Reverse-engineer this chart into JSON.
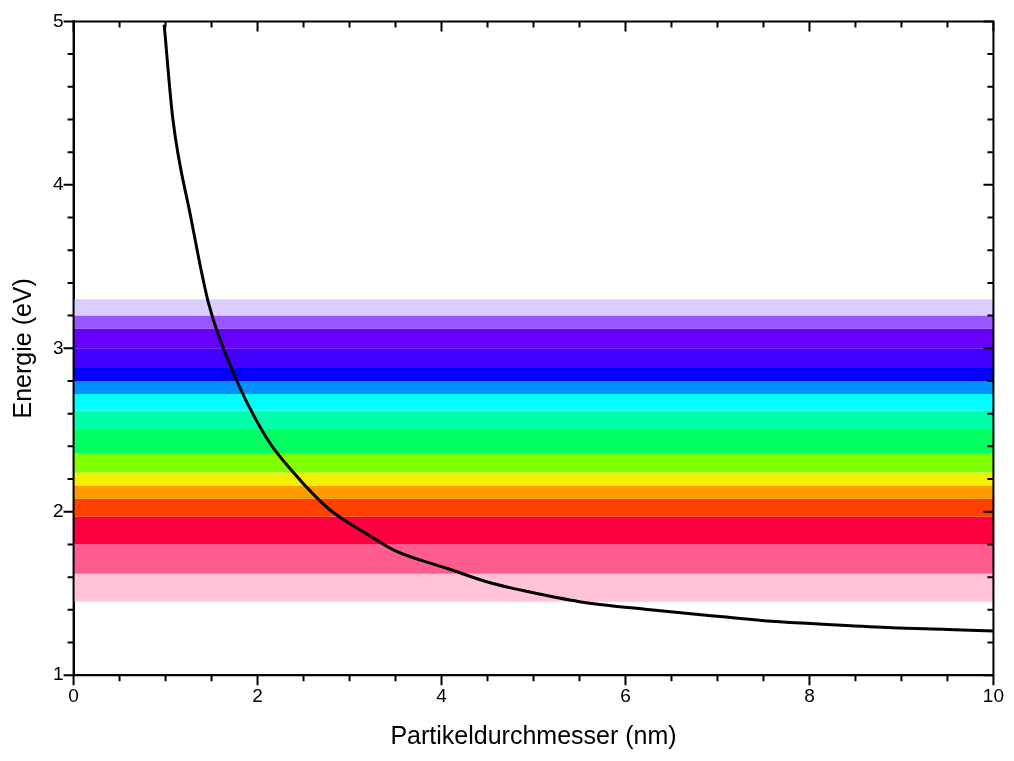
{
  "chart_data": {
    "type": "line",
    "xlabel": "Partikeldurchmesser (nm)",
    "ylabel": "Energie (eV)",
    "xlim": [
      0,
      10
    ],
    "ylim": [
      1,
      5
    ],
    "xticks": [
      0,
      {
        "value": 0.5,
        "label": null
      },
      {
        "value": 1,
        "label": null
      },
      {
        "value": 1.5,
        "label": null
      },
      2,
      {
        "value": 2.5,
        "label": null
      },
      {
        "value": 3,
        "label": null
      },
      {
        "value": 3.5,
        "label": null
      },
      4,
      {
        "value": 4.5,
        "label": null
      },
      {
        "value": 5,
        "label": null
      },
      {
        "value": 5.5,
        "label": null
      },
      6,
      {
        "value": 6.5,
        "label": null
      },
      {
        "value": 7,
        "label": null
      },
      {
        "value": 7.5,
        "label": null
      },
      8,
      {
        "value": 8.5,
        "label": null
      },
      {
        "value": 9,
        "label": null
      },
      {
        "value": 9.5,
        "label": null
      },
      10
    ],
    "yticks": [
      1,
      {
        "value": 1.2,
        "label": null
      },
      {
        "value": 1.4,
        "label": null
      },
      {
        "value": 1.6,
        "label": null
      },
      {
        "value": 1.8,
        "label": null
      },
      2,
      {
        "value": 2.2,
        "label": null
      },
      {
        "value": 2.4,
        "label": null
      },
      {
        "value": 2.6,
        "label": null
      },
      {
        "value": 2.8,
        "label": null
      },
      3,
      {
        "value": 3.2,
        "label": null
      },
      {
        "value": 3.4,
        "label": null
      },
      {
        "value": 3.6,
        "label": null
      },
      {
        "value": 3.8,
        "label": null
      },
      4,
      {
        "value": 4.2,
        "label": null
      },
      {
        "value": 4.4,
        "label": null
      },
      {
        "value": 4.6,
        "label": null
      },
      {
        "value": 4.8,
        "label": null
      },
      5
    ],
    "legend": false,
    "marker": "none",
    "line_style": "solid",
    "series": [
      {
        "color": "#000000",
        "x": [
          0.985,
          1.08,
          1.275,
          1.47,
          1.76,
          2.1,
          2.39,
          2.77,
          3.2,
          3.5,
          4.08,
          4.5,
          4.95,
          5.5,
          6.27,
          7,
          7.59,
          8.2,
          8.9,
          9.5,
          10
        ],
        "values": [
          4.98,
          4.4,
          3.8,
          3.27,
          2.82,
          2.45,
          2.24,
          2.02,
          1.86,
          1.76,
          1.65,
          1.57,
          1.51,
          1.45,
          1.4,
          1.36,
          1.33,
          1.31,
          1.29,
          1.28,
          1.27
        ]
      }
    ],
    "bands": [
      {
        "axis": "y",
        "from": 1.45,
        "to": 1.62,
        "color": "#ffc2d6"
      },
      {
        "axis": "y",
        "from": 1.62,
        "to": 1.8,
        "color": "#ff5c8f"
      },
      {
        "axis": "y",
        "from": 1.8,
        "to": 1.97,
        "color": "#ff0040"
      },
      {
        "axis": "y",
        "from": 1.97,
        "to": 2.08,
        "color": "#ff4000"
      },
      {
        "axis": "y",
        "from": 2.08,
        "to": 2.16,
        "color": "#ff9900"
      },
      {
        "axis": "y",
        "from": 2.16,
        "to": 2.24,
        "color": "#f0f000"
      },
      {
        "axis": "y",
        "from": 2.24,
        "to": 2.36,
        "color": "#80ff00"
      },
      {
        "axis": "y",
        "from": 2.36,
        "to": 2.5,
        "color": "#00ff60"
      },
      {
        "axis": "y",
        "from": 2.5,
        "to": 2.62,
        "color": "#00ffaa"
      },
      {
        "axis": "y",
        "from": 2.62,
        "to": 2.72,
        "color": "#00ffff"
      },
      {
        "axis": "y",
        "from": 2.72,
        "to": 2.8,
        "color": "#0090ff"
      },
      {
        "axis": "y",
        "from": 2.8,
        "to": 2.88,
        "color": "#0000ff"
      },
      {
        "axis": "y",
        "from": 2.88,
        "to": 3.0,
        "color": "#4400ff"
      },
      {
        "axis": "y",
        "from": 3.0,
        "to": 3.12,
        "color": "#6600ff"
      },
      {
        "axis": "y",
        "from": 3.12,
        "to": 3.2,
        "color": "#9955ff"
      },
      {
        "axis": "y",
        "from": 3.2,
        "to": 3.3,
        "color": "#ddccff"
      }
    ]
  }
}
